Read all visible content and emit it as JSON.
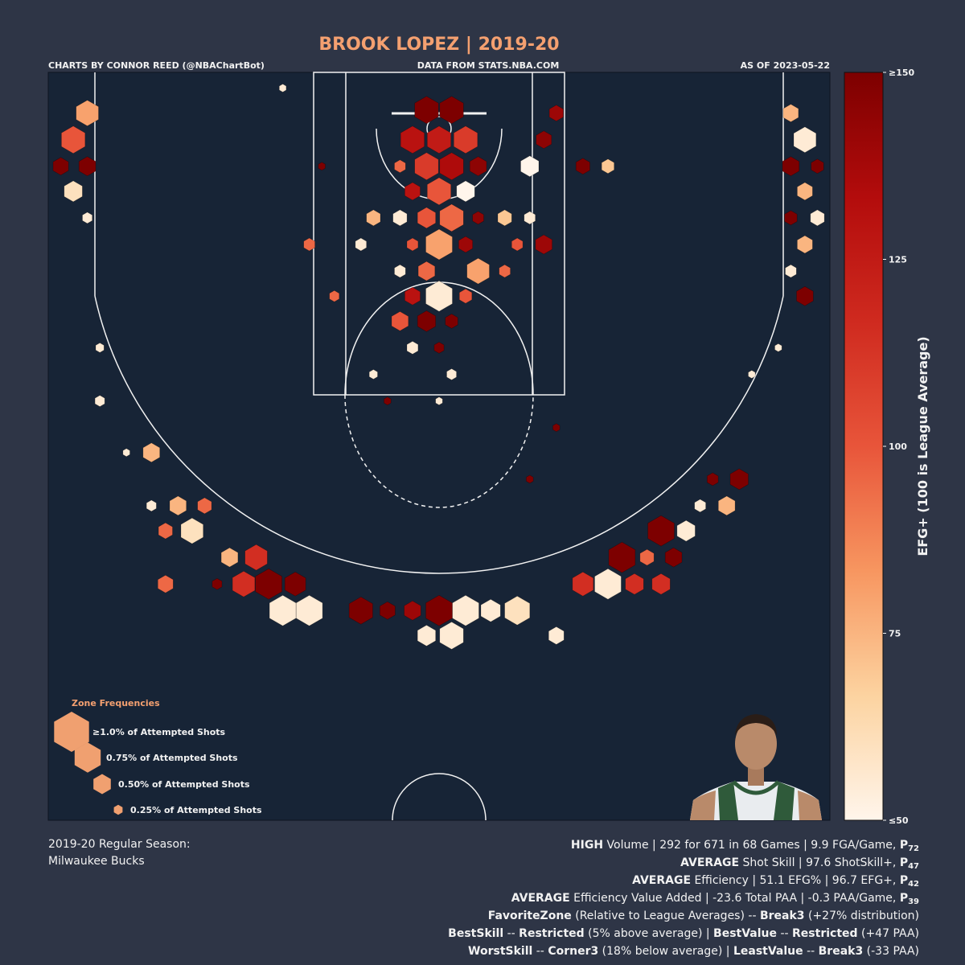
{
  "chart_data": {
    "type": "hexbin",
    "title": "BROOK LOPEZ | 2019-20",
    "credit": "CHARTS BY CONNOR REED (@NBAChartBot)",
    "source": "DATA FROM STATS.NBA.COM",
    "as_of": "AS OF 2023-05-22",
    "xlim": [
      -250,
      250
    ],
    "ylim": [
      -36,
      442
    ],
    "clim": [
      50,
      150
    ],
    "colormap": [
      "#fff5eb",
      "#fcd3a0",
      "#f79660",
      "#e8553a",
      "#cf2a1f",
      "#b30c0c",
      "#7d0000"
    ],
    "colorbar_label": "EFG+ (100 is League Average)",
    "colorbar_ticks": [
      {
        "value": 50,
        "label": "≤50"
      },
      75,
      100,
      125,
      {
        "value": 150,
        "label": "≥150"
      }
    ],
    "hexes": {
      "x": [
        -8,
        8,
        -17,
        0,
        17,
        -8,
        8,
        25,
        -17,
        0,
        17,
        -25,
        58,
        75,
        67,
        92,
        108,
        -25,
        -8,
        8,
        25,
        42,
        58,
        0,
        -17,
        17,
        50,
        67,
        -50,
        -42,
        -8,
        25,
        42,
        -25,
        0,
        -17,
        17,
        -25,
        -8,
        8,
        -67,
        -83,
        -225,
        -234,
        -242,
        -225,
        -234,
        -225,
        225,
        234,
        225,
        242,
        234,
        225,
        242,
        234,
        225,
        234,
        -184,
        -167,
        -150,
        -175,
        -158,
        -134,
        -117,
        -125,
        -109,
        -92,
        -100,
        -83,
        -175,
        -184,
        -142,
        -50,
        -33,
        -17,
        0,
        17,
        33,
        50,
        -8,
        8,
        75,
        92,
        108,
        125,
        142,
        117,
        133,
        150,
        142,
        158,
        184,
        192,
        175,
        167,
        -217,
        -217,
        -200,
        -100,
        -75,
        -42,
        8,
        0,
        -17,
        -33,
        0,
        75,
        58,
        200,
        217
      ],
      "y": [
        -12,
        -12,
        7,
        7,
        7,
        24,
        24,
        24,
        40,
        40,
        40,
        24,
        24,
        -10,
        7,
        24,
        24,
        57,
        57,
        57,
        57,
        57,
        57,
        74,
        74,
        74,
        74,
        74,
        74,
        57,
        91,
        91,
        91,
        91,
        107,
        107,
        107,
        123,
        123,
        123,
        107,
        74,
        -10,
        7,
        24,
        24,
        40,
        57,
        -10,
        7,
        24,
        24,
        40,
        57,
        57,
        74,
        91,
        107,
        207,
        241,
        241,
        257,
        257,
        274,
        274,
        291,
        291,
        291,
        308,
        308,
        291,
        241,
        291,
        308,
        308,
        308,
        308,
        308,
        308,
        308,
        324,
        324,
        324,
        291,
        291,
        291,
        291,
        274,
        274,
        274,
        257,
        257,
        241,
        224,
        224,
        241,
        140,
        174,
        207,
        -26,
        24,
        157,
        157,
        140,
        140,
        174,
        174,
        191,
        224,
        157,
        140
      ],
      "efg": [
        150,
        150,
        130,
        125,
        110,
        110,
        135,
        145,
        130,
        100,
        50,
        95,
        50,
        140,
        145,
        150,
        70,
        55,
        100,
        95,
        145,
        70,
        55,
        80,
        100,
        140,
        100,
        140,
        55,
        75,
        95,
        80,
        95,
        55,
        55,
        130,
        100,
        100,
        150,
        150,
        95,
        95,
        80,
        100,
        150,
        150,
        60,
        55,
        75,
        55,
        150,
        150,
        75,
        150,
        55,
        75,
        55,
        150,
        75,
        75,
        95,
        95,
        60,
        75,
        115,
        115,
        150,
        150,
        55,
        55,
        95,
        55,
        150,
        150,
        150,
        140,
        150,
        55,
        55,
        60,
        55,
        55,
        55,
        115,
        55,
        115,
        115,
        150,
        95,
        150,
        150,
        55,
        75,
        150,
        150,
        55,
        55,
        55,
        55,
        55,
        150,
        55,
        55,
        150,
        55,
        150,
        55,
        150,
        150,
        55,
        55
      ],
      "freq": [
        0.68,
        0.68,
        0.68,
        0.68,
        0.68,
        0.68,
        0.68,
        0.48,
        0.44,
        0.68,
        0.52,
        0.32,
        0.52,
        0.4,
        0.44,
        0.4,
        0.36,
        0.4,
        0.52,
        0.68,
        0.32,
        0.4,
        0.32,
        0.76,
        0.32,
        0.4,
        0.32,
        0.48,
        0.32,
        0.4,
        0.48,
        0.64,
        0.32,
        0.32,
        0.76,
        0.44,
        0.36,
        0.48,
        0.52,
        0.36,
        0.28,
        0.32,
        0.64,
        0.68,
        0.44,
        0.48,
        0.52,
        0.28,
        0.44,
        0.64,
        0.48,
        0.36,
        0.44,
        0.36,
        0.4,
        0.44,
        0.32,
        0.48,
        0.48,
        0.48,
        0.4,
        0.4,
        0.64,
        0.48,
        0.64,
        0.64,
        0.76,
        0.6,
        0.76,
        0.76,
        0.44,
        0.28,
        0.28,
        0.68,
        0.44,
        0.48,
        0.76,
        0.76,
        0.56,
        0.72,
        0.52,
        0.68,
        0.44,
        0.6,
        0.76,
        0.52,
        0.52,
        0.76,
        0.4,
        0.48,
        0.76,
        0.52,
        0.48,
        0.52,
        0.32,
        0.32,
        0.24,
        0.28,
        0.2,
        0.2,
        0.2,
        0.24,
        0.28,
        0.28,
        0.32,
        0.2,
        0.2,
        0.2,
        0.2,
        0.2,
        0.2
      ]
    },
    "legend_title": "Zone Frequencies",
    "legend": [
      {
        "value": 1.0,
        "label": "≥1.0% of Attempted Shots"
      },
      {
        "value": 0.75,
        "label": "0.75% of Attempted Shots"
      },
      {
        "value": 0.5,
        "label": "0.50% of Attempted Shots"
      },
      {
        "value": 0.25,
        "label": "0.25% of Attempted Shots"
      }
    ],
    "season_lines": [
      "2019-20 Regular Season:",
      "Milwaukee Bucks"
    ],
    "summary_lines": [
      [
        {
          "text": "HIGH",
          "bold": true
        },
        {
          "text": " Volume | 292 for 671 in 68 Games | 9.9 FGA/Game, "
        },
        {
          "text": "P",
          "bold": true
        },
        {
          "text": "72",
          "bold": true,
          "sub": true
        }
      ],
      [
        {
          "text": "AVERAGE",
          "bold": true
        },
        {
          "text": " Shot Skill | 97.6 ShotSkill+, "
        },
        {
          "text": "P",
          "bold": true
        },
        {
          "text": "47",
          "bold": true,
          "sub": true
        }
      ],
      [
        {
          "text": "AVERAGE",
          "bold": true
        },
        {
          "text": " Efficiency | 51.1 EFG% | 96.7 EFG+, "
        },
        {
          "text": "P",
          "bold": true
        },
        {
          "text": "42",
          "bold": true,
          "sub": true
        }
      ],
      [
        {
          "text": "AVERAGE",
          "bold": true
        },
        {
          "text": " Efficiency Value Added | -23.6 Total PAA | -0.3 PAA/Game, "
        },
        {
          "text": "P",
          "bold": true
        },
        {
          "text": "39",
          "bold": true,
          "sub": true
        }
      ],
      [
        {
          "text": "FavoriteZone",
          "bold": true
        },
        {
          "text": " (Relative to League Averages) -- "
        },
        {
          "text": "Break3",
          "bold": true
        },
        {
          "text": " (+27% distribution)"
        }
      ],
      [
        {
          "text": "BestSkill",
          "bold": true
        },
        {
          "text": " -- "
        },
        {
          "text": "Restricted",
          "bold": true
        },
        {
          "text": " (5% above average) | "
        },
        {
          "text": "BestValue",
          "bold": true
        },
        {
          "text": " -- "
        },
        {
          "text": "Restricted",
          "bold": true
        },
        {
          "text": " (+47 PAA)"
        }
      ],
      [
        {
          "text": "WorstSkill",
          "bold": true
        },
        {
          "text": " -- "
        },
        {
          "text": "Corner3",
          "bold": true
        },
        {
          "text": " (18% below average) | "
        },
        {
          "text": "LeastValue",
          "bold": true
        },
        {
          "text": " -- "
        },
        {
          "text": "Break3",
          "bold": true
        },
        {
          "text": " (-33 PAA)"
        }
      ]
    ]
  }
}
